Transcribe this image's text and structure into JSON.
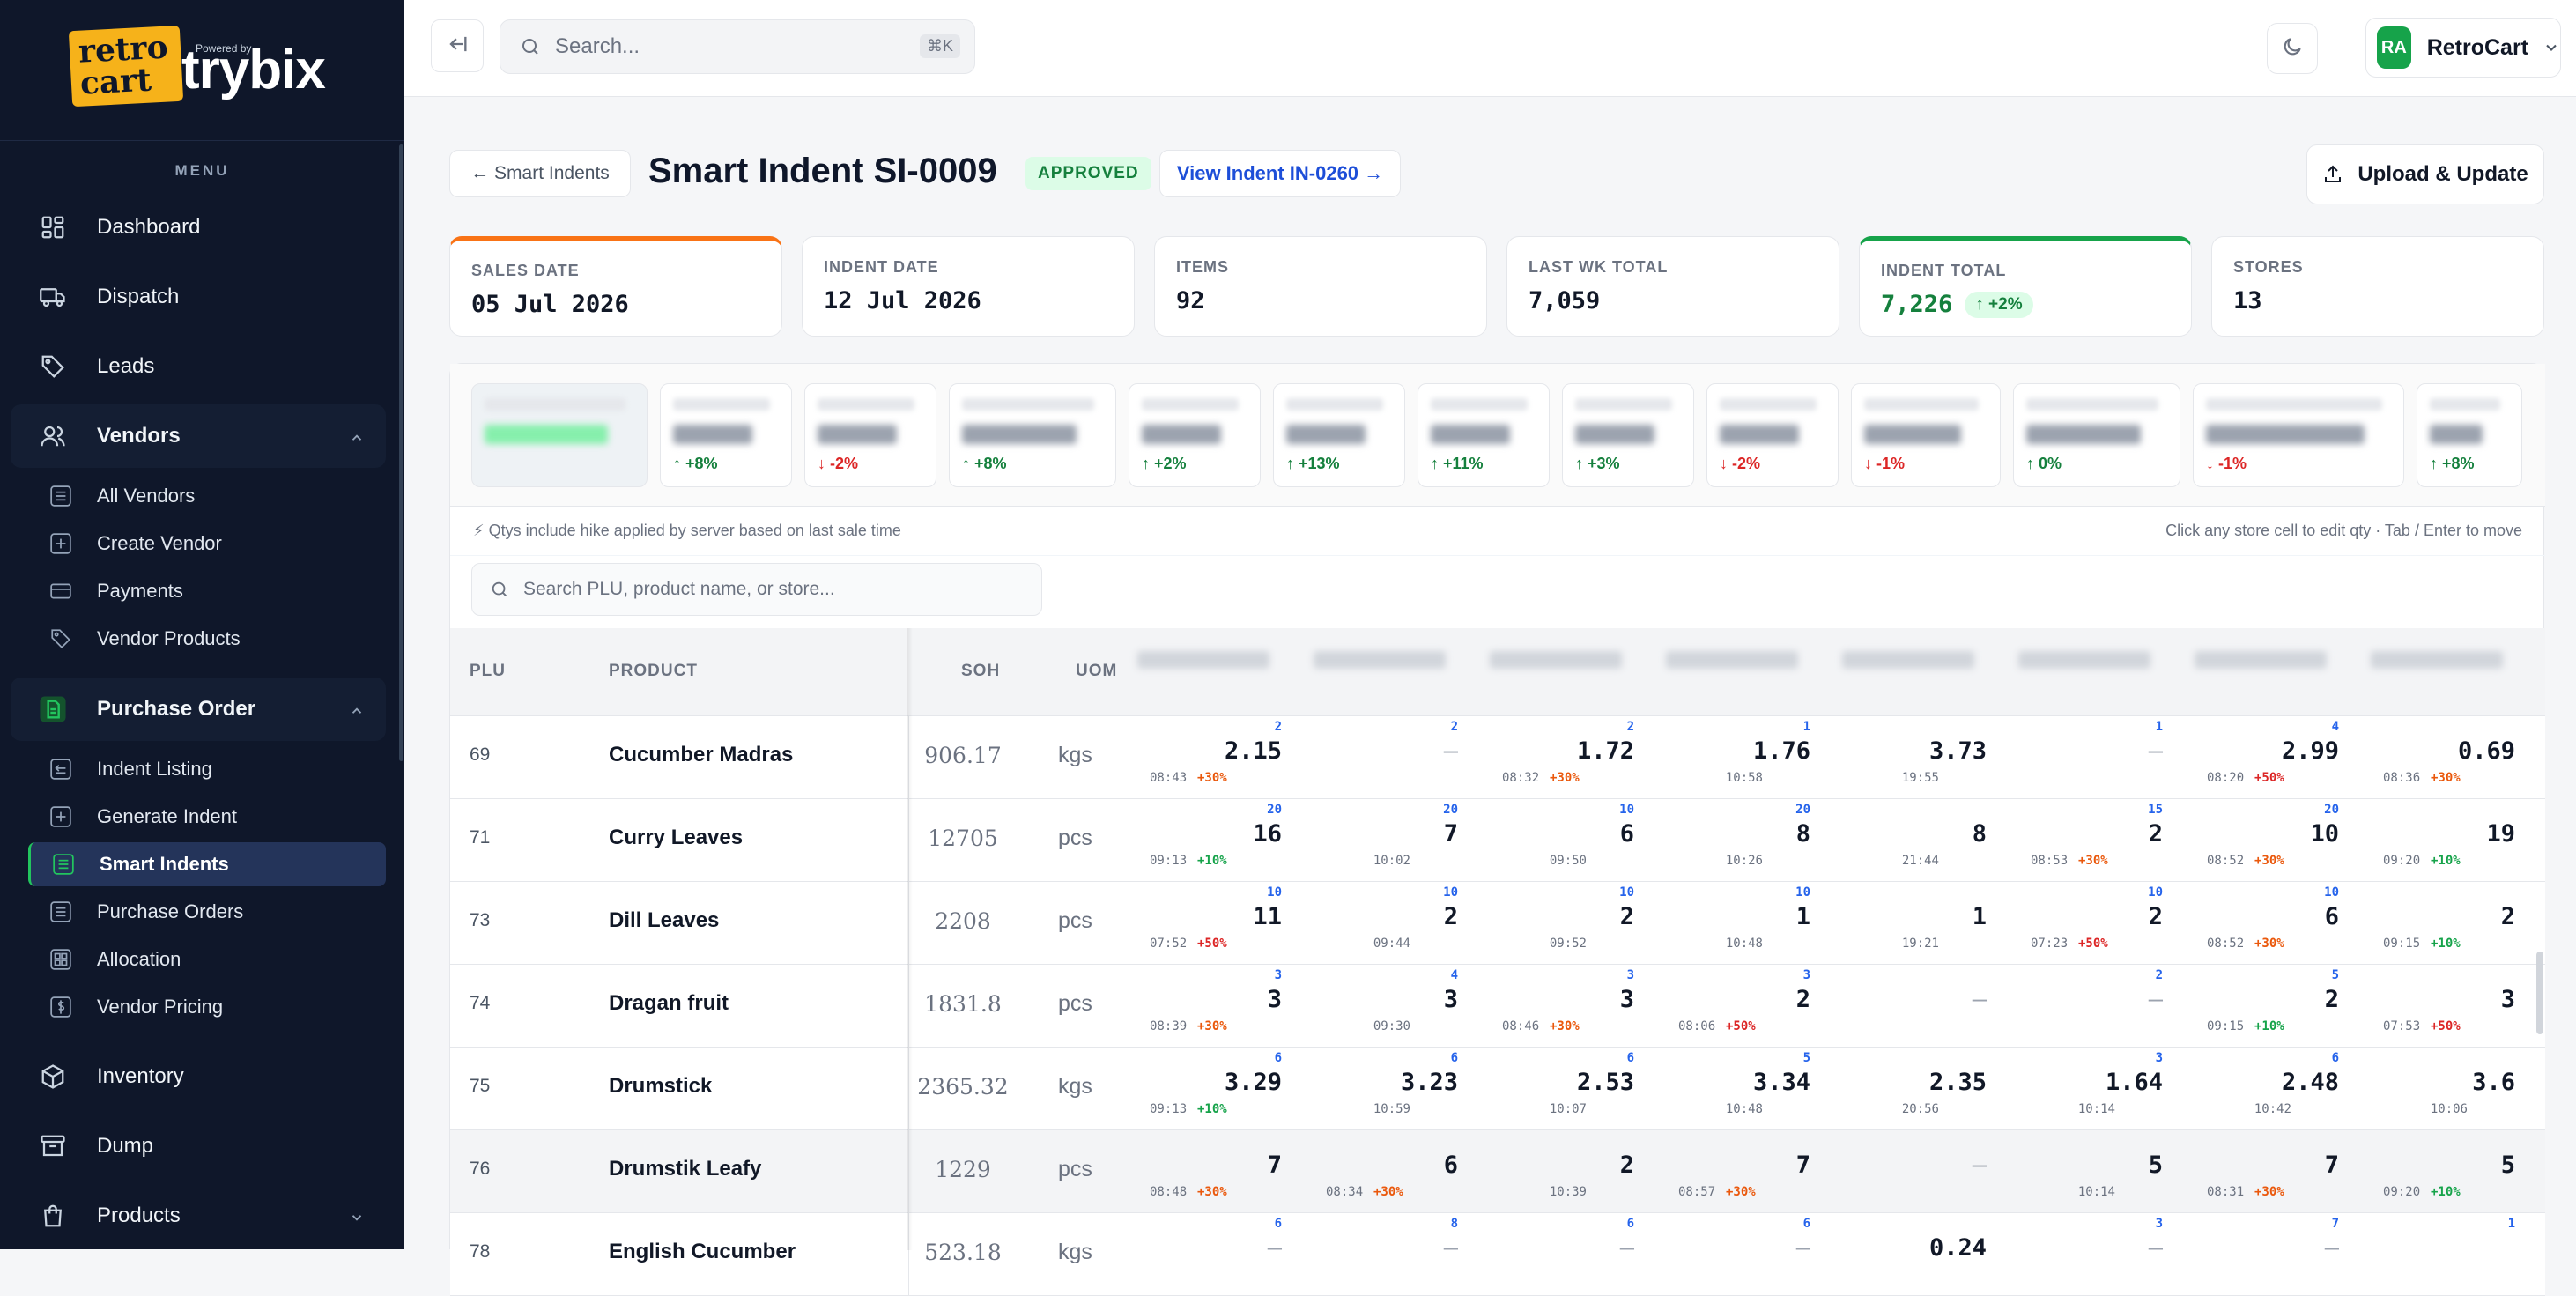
{
  "brand": {
    "logo_line1": "retro",
    "logo_line2": "cart",
    "powered_by": "Powered by",
    "name": "trybix"
  },
  "sidebar": {
    "menu_label": "MENU",
    "items": [
      {
        "label": "Dashboard",
        "icon": "dashboard-icon"
      },
      {
        "label": "Dispatch",
        "icon": "truck-icon"
      },
      {
        "label": "Leads",
        "icon": "tag-icon"
      }
    ],
    "vendors": {
      "label": "Vendors",
      "sub": [
        "All Vendors",
        "Create Vendor",
        "Payments",
        "Vendor Products"
      ]
    },
    "purchase_order": {
      "label": "Purchase Order",
      "sub": [
        "Indent Listing",
        "Generate Indent",
        "Smart Indents",
        "Purchase Orders",
        "Allocation",
        "Vendor Pricing"
      ]
    },
    "bottom": [
      {
        "label": "Inventory",
        "icon": "box-icon"
      },
      {
        "label": "Dump",
        "icon": "archive-icon"
      },
      {
        "label": "Products",
        "icon": "bag-icon"
      }
    ]
  },
  "topbar": {
    "search_placeholder": "Search...",
    "shortcut": "⌘K",
    "avatar": "RA",
    "user": "RetroCart"
  },
  "header": {
    "back": "← Smart Indents",
    "title": "Smart Indent SI-0009",
    "status": "APPROVED",
    "indent_link": "View Indent IN-0260 →",
    "upload": "Upload & Update"
  },
  "stats": [
    {
      "label": "SALES DATE",
      "value": "05 Jul 2026"
    },
    {
      "label": "INDENT DATE",
      "value": "12 Jul 2026"
    },
    {
      "label": "ITEMS",
      "value": "92"
    },
    {
      "label": "LAST WK TOTAL",
      "value": "7,059"
    },
    {
      "label": "INDENT TOTAL",
      "value": "7,226",
      "change": "↑ +2%"
    },
    {
      "label": "STORES",
      "value": "13"
    }
  ],
  "store_changes": [
    {
      "change": "",
      "dir": "up"
    },
    {
      "change": "↑ +8%",
      "dir": "up"
    },
    {
      "change": "↓ -2%",
      "dir": "down"
    },
    {
      "change": "↑ +8%",
      "dir": "up"
    },
    {
      "change": "↑ +2%",
      "dir": "up"
    },
    {
      "change": "↑ +13%",
      "dir": "up"
    },
    {
      "change": "↑ +11%",
      "dir": "up"
    },
    {
      "change": "↑ +3%",
      "dir": "up"
    },
    {
      "change": "↓ -2%",
      "dir": "down"
    },
    {
      "change": "↓ -1%",
      "dir": "down"
    },
    {
      "change": "↑ 0%",
      "dir": "up"
    },
    {
      "change": "↓ -1%",
      "dir": "down"
    },
    {
      "change": "↑ +8%",
      "dir": "up"
    }
  ],
  "info": {
    "left": "⚡ Qtys include hike applied by server based on last sale time",
    "right": "Click any store cell to edit qty · Tab / Enter to move"
  },
  "table": {
    "search_placeholder": "Search PLU, product name, or store...",
    "headers": {
      "plu": "PLU",
      "product": "PRODUCT",
      "soh": "SOH",
      "uom": "UOM"
    },
    "rows": [
      {
        "plu": "69",
        "name": "Cucumber Madras",
        "soh": "906.17",
        "uom": "kgs",
        "cells": [
          {
            "p": "2",
            "q": "2.15",
            "t": "08:43",
            "h": "+30%"
          },
          {
            "p": "2",
            "q": "—",
            "t": "",
            "h": ""
          },
          {
            "p": "2",
            "q": "1.72",
            "t": "08:32",
            "h": "+30%"
          },
          {
            "p": "1",
            "q": "1.76",
            "t": "10:58",
            "h": ""
          },
          {
            "p": "",
            "q": "3.73",
            "t": "19:55",
            "h": ""
          },
          {
            "p": "1",
            "q": "—",
            "t": "",
            "h": ""
          },
          {
            "p": "4",
            "q": "2.99",
            "t": "08:20",
            "h": "+50%"
          },
          {
            "p": "",
            "q": "0.69",
            "t": "08:36",
            "h": "+30%"
          }
        ]
      },
      {
        "plu": "71",
        "name": "Curry Leaves",
        "soh": "12705",
        "uom": "pcs",
        "cells": [
          {
            "p": "20",
            "q": "16",
            "t": "09:13",
            "h": "+10%"
          },
          {
            "p": "20",
            "q": "7",
            "t": "10:02",
            "h": ""
          },
          {
            "p": "10",
            "q": "6",
            "t": "09:50",
            "h": ""
          },
          {
            "p": "20",
            "q": "8",
            "t": "10:26",
            "h": ""
          },
          {
            "p": "",
            "q": "8",
            "t": "21:44",
            "h": ""
          },
          {
            "p": "15",
            "q": "2",
            "t": "08:53",
            "h": "+30%"
          },
          {
            "p": "20",
            "q": "10",
            "t": "08:52",
            "h": "+30%"
          },
          {
            "p": "",
            "q": "19",
            "t": "09:20",
            "h": "+10%"
          }
        ]
      },
      {
        "plu": "73",
        "name": "Dill Leaves",
        "soh": "2208",
        "uom": "pcs",
        "cells": [
          {
            "p": "10",
            "q": "11",
            "t": "07:52",
            "h": "+50%"
          },
          {
            "p": "10",
            "q": "2",
            "t": "09:44",
            "h": ""
          },
          {
            "p": "10",
            "q": "2",
            "t": "09:52",
            "h": ""
          },
          {
            "p": "10",
            "q": "1",
            "t": "10:48",
            "h": ""
          },
          {
            "p": "",
            "q": "1",
            "t": "19:21",
            "h": ""
          },
          {
            "p": "10",
            "q": "2",
            "t": "07:23",
            "h": "+50%"
          },
          {
            "p": "10",
            "q": "6",
            "t": "08:52",
            "h": "+30%"
          },
          {
            "p": "",
            "q": "2",
            "t": "09:15",
            "h": "+10%"
          }
        ]
      },
      {
        "plu": "74",
        "name": "Dragan fruit",
        "soh": "1831.8",
        "uom": "pcs",
        "cells": [
          {
            "p": "3",
            "q": "3",
            "t": "08:39",
            "h": "+30%"
          },
          {
            "p": "4",
            "q": "3",
            "t": "09:30",
            "h": ""
          },
          {
            "p": "3",
            "q": "3",
            "t": "08:46",
            "h": "+30%"
          },
          {
            "p": "3",
            "q": "2",
            "t": "08:06",
            "h": "+50%"
          },
          {
            "p": "",
            "q": "—",
            "t": "",
            "h": ""
          },
          {
            "p": "2",
            "q": "—",
            "t": "",
            "h": ""
          },
          {
            "p": "5",
            "q": "2",
            "t": "09:15",
            "h": "+10%"
          },
          {
            "p": "",
            "q": "3",
            "t": "07:53",
            "h": "+50%"
          }
        ]
      },
      {
        "plu": "75",
        "name": "Drumstick",
        "soh": "2365.32",
        "uom": "kgs",
        "cells": [
          {
            "p": "6",
            "q": "3.29",
            "t": "09:13",
            "h": "+10%"
          },
          {
            "p": "6",
            "q": "3.23",
            "t": "10:59",
            "h": ""
          },
          {
            "p": "6",
            "q": "2.53",
            "t": "10:07",
            "h": ""
          },
          {
            "p": "5",
            "q": "3.34",
            "t": "10:48",
            "h": ""
          },
          {
            "p": "",
            "q": "2.35",
            "t": "20:56",
            "h": ""
          },
          {
            "p": "3",
            "q": "1.64",
            "t": "10:14",
            "h": ""
          },
          {
            "p": "6",
            "q": "2.48",
            "t": "10:42",
            "h": ""
          },
          {
            "p": "",
            "q": "3.6",
            "t": "10:06",
            "h": ""
          }
        ]
      },
      {
        "plu": "76",
        "name": "Drumstik Leafy",
        "soh": "1229",
        "uom": "pcs",
        "cells": [
          {
            "p": "",
            "q": "7",
            "t": "08:48",
            "h": "+30%"
          },
          {
            "p": "",
            "q": "6",
            "t": "08:34",
            "h": "+30%"
          },
          {
            "p": "",
            "q": "2",
            "t": "10:39",
            "h": ""
          },
          {
            "p": "",
            "q": "7",
            "t": "08:57",
            "h": "+30%"
          },
          {
            "p": "",
            "q": "—",
            "t": "",
            "h": ""
          },
          {
            "p": "",
            "q": "5",
            "t": "10:14",
            "h": ""
          },
          {
            "p": "",
            "q": "7",
            "t": "08:31",
            "h": "+30%"
          },
          {
            "p": "",
            "q": "5",
            "t": "09:20",
            "h": "+10%"
          }
        ]
      },
      {
        "plu": "78",
        "name": "English Cucumber",
        "soh": "523.18",
        "uom": "kgs",
        "cells": [
          {
            "p": "6",
            "q": "—",
            "t": "",
            "h": ""
          },
          {
            "p": "8",
            "q": "—",
            "t": "",
            "h": ""
          },
          {
            "p": "6",
            "q": "—",
            "t": "",
            "h": ""
          },
          {
            "p": "6",
            "q": "—",
            "t": "",
            "h": ""
          },
          {
            "p": "",
            "q": "0.24",
            "t": "",
            "h": ""
          },
          {
            "p": "3",
            "q": "—",
            "t": "",
            "h": ""
          },
          {
            "p": "7",
            "q": "—",
            "t": "",
            "h": ""
          },
          {
            "p": "1",
            "q": "",
            "t": "",
            "h": ""
          }
        ]
      }
    ]
  }
}
